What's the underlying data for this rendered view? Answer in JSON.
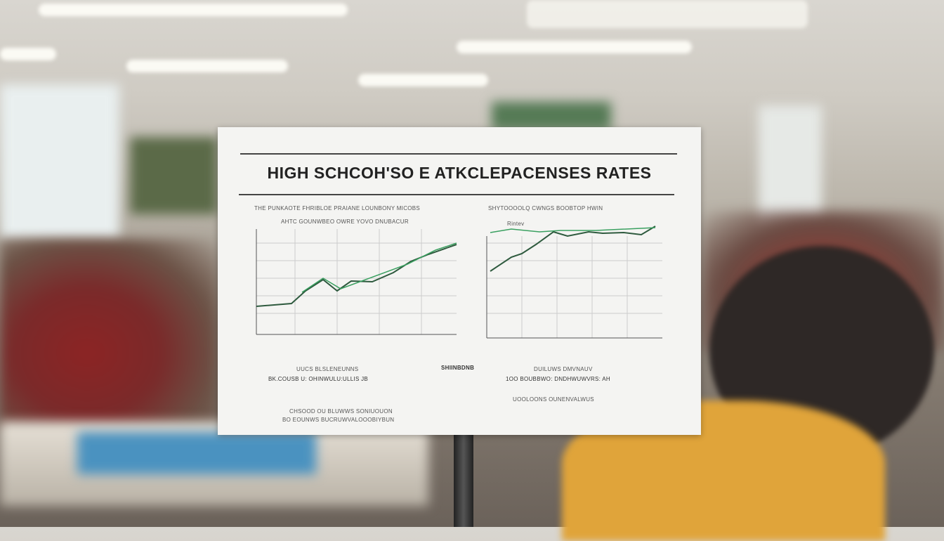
{
  "poster": {
    "title": "HIGH SCHCOH'SO E ATKCLEPACENSES RATES",
    "left_caption_1": "THE PUNKAOTE FHRIBLOE PRAIANE LOUNBONY MICOBS",
    "left_caption_2": "AHTC GOUNWBEO OWRE YOVO DNUBACUR",
    "right_caption": "SHYTOOOOLQ CWNGS BOOBTOP HWIN",
    "right_legend": "Rintev",
    "footer_left_1": "UUCS BLSLENEUNNS",
    "footer_left_2": "BK.COUSB U: OHINWULU:ULLIS JB",
    "footer_left_3": "CHSOOD OU BLUWWS SONIUOUON",
    "footer_left_4": "BO EOUNWS BUCRUWVALOOOBIYBUN",
    "footer_mid": "SHIINBDNB",
    "footer_right_1": "DUILUWS DMVNAUV",
    "footer_right_2": "1OO BOUBBWO: DNDHWUWVRS: AH",
    "footer_right_3": "UOOLOONS OUNENVALWUS",
    "line_color": "#2e8a4e"
  }
}
